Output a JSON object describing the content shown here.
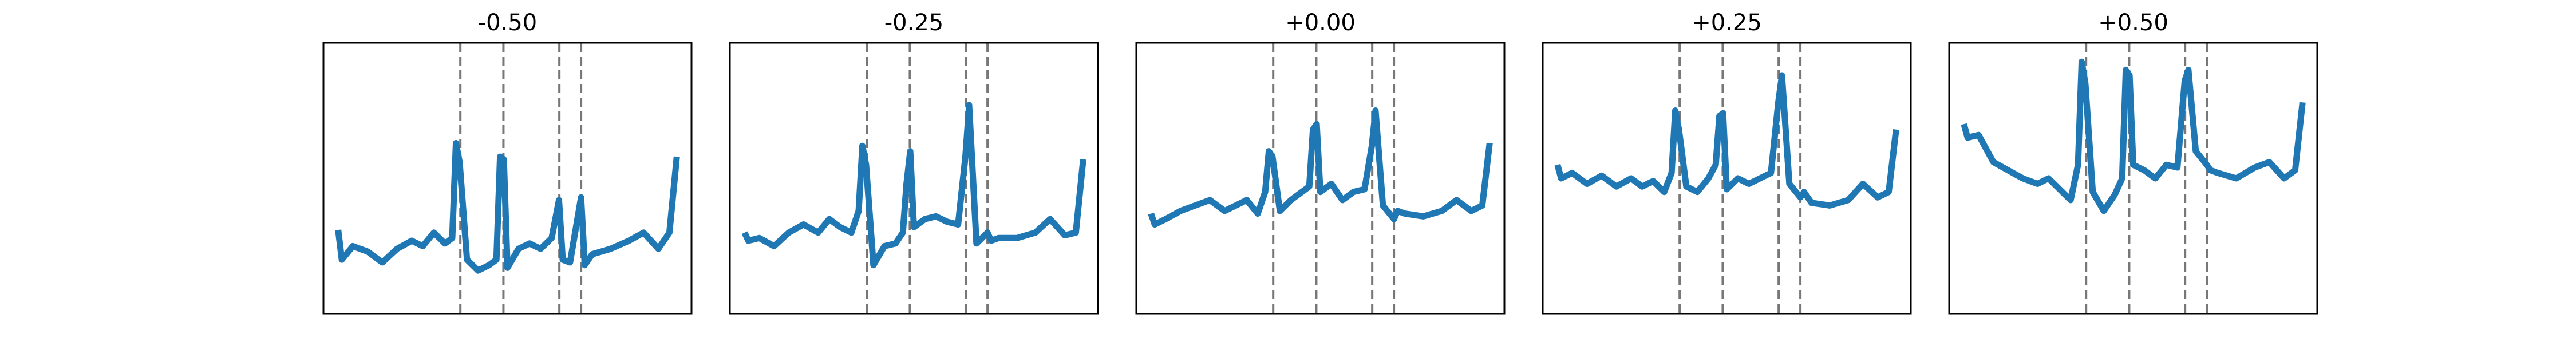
{
  "chart_data": [
    {
      "type": "line",
      "title": "-0.50",
      "color": "#1f77b4",
      "xlim": [
        0,
        1
      ],
      "ylim": [
        0,
        1
      ],
      "vlines": [
        0.372,
        0.489,
        0.641,
        0.7
      ],
      "x": [
        0.04,
        0.05,
        0.08,
        0.12,
        0.16,
        0.2,
        0.24,
        0.27,
        0.3,
        0.33,
        0.35,
        0.36,
        0.37,
        0.39,
        0.42,
        0.45,
        0.47,
        0.48,
        0.49,
        0.5,
        0.53,
        0.56,
        0.59,
        0.62,
        0.64,
        0.65,
        0.67,
        0.7,
        0.71,
        0.73,
        0.78,
        0.83,
        0.87,
        0.91,
        0.94,
        0.96
      ],
      "values": [
        0.31,
        0.2,
        0.25,
        0.23,
        0.19,
        0.24,
        0.27,
        0.25,
        0.3,
        0.26,
        0.28,
        0.63,
        0.56,
        0.2,
        0.16,
        0.18,
        0.2,
        0.58,
        0.57,
        0.17,
        0.24,
        0.26,
        0.24,
        0.28,
        0.42,
        0.2,
        0.19,
        0.43,
        0.18,
        0.22,
        0.24,
        0.27,
        0.3,
        0.24,
        0.3,
        0.58
      ]
    },
    {
      "type": "line",
      "title": "-0.25",
      "color": "#1f77b4",
      "xlim": [
        0,
        1
      ],
      "ylim": [
        0,
        1
      ],
      "vlines": [
        0.372,
        0.489,
        0.641,
        0.7
      ],
      "x": [
        0.04,
        0.05,
        0.08,
        0.12,
        0.16,
        0.2,
        0.24,
        0.27,
        0.3,
        0.33,
        0.35,
        0.36,
        0.37,
        0.39,
        0.42,
        0.45,
        0.47,
        0.48,
        0.49,
        0.5,
        0.53,
        0.56,
        0.59,
        0.62,
        0.64,
        0.65,
        0.67,
        0.7,
        0.71,
        0.73,
        0.78,
        0.83,
        0.87,
        0.91,
        0.94,
        0.96
      ],
      "values": [
        0.3,
        0.27,
        0.28,
        0.25,
        0.3,
        0.33,
        0.3,
        0.35,
        0.32,
        0.3,
        0.38,
        0.62,
        0.55,
        0.18,
        0.25,
        0.26,
        0.3,
        0.48,
        0.6,
        0.32,
        0.35,
        0.36,
        0.34,
        0.33,
        0.58,
        0.77,
        0.26,
        0.3,
        0.27,
        0.28,
        0.28,
        0.3,
        0.35,
        0.29,
        0.3,
        0.57
      ]
    },
    {
      "type": "line",
      "title": "+0.00",
      "color": "#1f77b4",
      "xlim": [
        0,
        1
      ],
      "ylim": [
        0,
        1
      ],
      "vlines": [
        0.372,
        0.489,
        0.641,
        0.7
      ],
      "x": [
        0.04,
        0.05,
        0.08,
        0.12,
        0.16,
        0.2,
        0.24,
        0.27,
        0.3,
        0.33,
        0.35,
        0.36,
        0.37,
        0.39,
        0.42,
        0.45,
        0.47,
        0.48,
        0.49,
        0.5,
        0.53,
        0.56,
        0.59,
        0.62,
        0.64,
        0.65,
        0.67,
        0.7,
        0.71,
        0.73,
        0.78,
        0.83,
        0.87,
        0.91,
        0.94,
        0.96
      ],
      "values": [
        0.37,
        0.33,
        0.35,
        0.38,
        0.4,
        0.42,
        0.38,
        0.4,
        0.42,
        0.37,
        0.45,
        0.6,
        0.58,
        0.38,
        0.42,
        0.45,
        0.47,
        0.68,
        0.7,
        0.45,
        0.48,
        0.42,
        0.45,
        0.46,
        0.62,
        0.75,
        0.4,
        0.35,
        0.38,
        0.37,
        0.36,
        0.38,
        0.42,
        0.38,
        0.4,
        0.63
      ]
    },
    {
      "type": "line",
      "title": "+0.25",
      "color": "#1f77b4",
      "xlim": [
        0,
        1
      ],
      "ylim": [
        0,
        1
      ],
      "vlines": [
        0.372,
        0.489,
        0.641,
        0.7
      ],
      "x": [
        0.04,
        0.05,
        0.08,
        0.12,
        0.16,
        0.2,
        0.24,
        0.27,
        0.3,
        0.33,
        0.35,
        0.36,
        0.37,
        0.39,
        0.42,
        0.45,
        0.47,
        0.48,
        0.49,
        0.5,
        0.53,
        0.56,
        0.59,
        0.62,
        0.64,
        0.65,
        0.67,
        0.7,
        0.71,
        0.73,
        0.78,
        0.83,
        0.87,
        0.91,
        0.94,
        0.96
      ],
      "values": [
        0.55,
        0.5,
        0.52,
        0.48,
        0.51,
        0.47,
        0.5,
        0.47,
        0.49,
        0.45,
        0.52,
        0.75,
        0.68,
        0.47,
        0.45,
        0.5,
        0.55,
        0.73,
        0.74,
        0.46,
        0.5,
        0.48,
        0.5,
        0.52,
        0.78,
        0.88,
        0.48,
        0.43,
        0.45,
        0.41,
        0.4,
        0.42,
        0.48,
        0.43,
        0.45,
        0.68
      ]
    },
    {
      "type": "line",
      "title": "+0.50",
      "color": "#1f77b4",
      "xlim": [
        0,
        1
      ],
      "ylim": [
        0,
        1
      ],
      "vlines": [
        0.372,
        0.489,
        0.641,
        0.7
      ],
      "x": [
        0.04,
        0.05,
        0.08,
        0.12,
        0.16,
        0.2,
        0.24,
        0.27,
        0.3,
        0.33,
        0.35,
        0.36,
        0.37,
        0.39,
        0.42,
        0.45,
        0.47,
        0.48,
        0.49,
        0.5,
        0.53,
        0.56,
        0.59,
        0.62,
        0.64,
        0.65,
        0.67,
        0.7,
        0.71,
        0.73,
        0.78,
        0.83,
        0.87,
        0.91,
        0.94,
        0.96
      ],
      "values": [
        0.7,
        0.65,
        0.66,
        0.56,
        0.53,
        0.5,
        0.48,
        0.5,
        0.46,
        0.42,
        0.55,
        0.93,
        0.85,
        0.45,
        0.38,
        0.44,
        0.5,
        0.9,
        0.88,
        0.55,
        0.53,
        0.5,
        0.55,
        0.54,
        0.86,
        0.9,
        0.6,
        0.55,
        0.53,
        0.52,
        0.5,
        0.54,
        0.56,
        0.5,
        0.53,
        0.78
      ]
    }
  ]
}
